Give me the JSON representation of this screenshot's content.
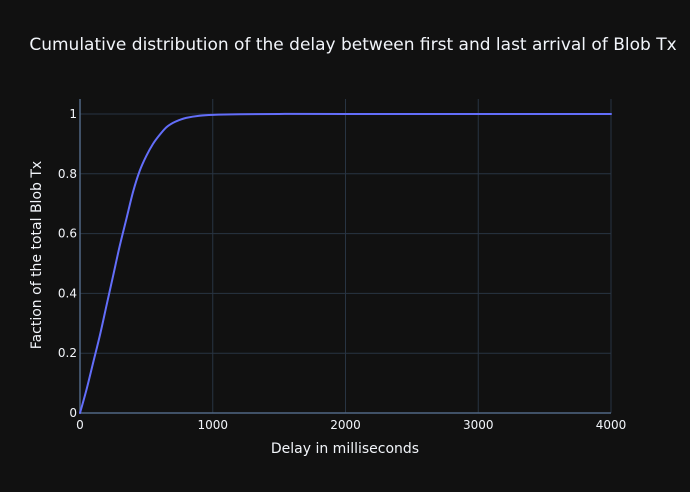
{
  "chart_data": {
    "type": "line",
    "title": "Cumulative distribution of the delay between first and last arrival of Blob Tx",
    "xlabel": "Delay in milliseconds",
    "ylabel": "Faction of the total Blob Tx",
    "xlim": [
      0,
      4000
    ],
    "ylim": [
      0,
      1.05
    ],
    "x_ticks": [
      "0",
      "1000",
      "2000",
      "3000",
      "4000"
    ],
    "y_ticks": [
      "0",
      "0.2",
      "0.4",
      "0.6",
      "0.8",
      "1"
    ],
    "grid": true,
    "legend": "none",
    "series": [
      {
        "color": "#636efa",
        "x": [
          0,
          50,
          100,
          150,
          200,
          250,
          300,
          350,
          400,
          450,
          500,
          550,
          600,
          650,
          700,
          750,
          800,
          900,
          1000,
          1200,
          1500,
          2000,
          3000,
          4000
        ],
        "y": [
          0,
          0.08,
          0.17,
          0.26,
          0.36,
          0.46,
          0.56,
          0.65,
          0.74,
          0.81,
          0.86,
          0.9,
          0.93,
          0.955,
          0.97,
          0.98,
          0.987,
          0.994,
          0.997,
          0.999,
          1,
          1,
          1,
          1
        ]
      }
    ]
  },
  "colors": {
    "background": "#111111",
    "grid": "#283442",
    "zeroline": "#506784",
    "text": "#f2f5fa",
    "line": "#636efa"
  }
}
